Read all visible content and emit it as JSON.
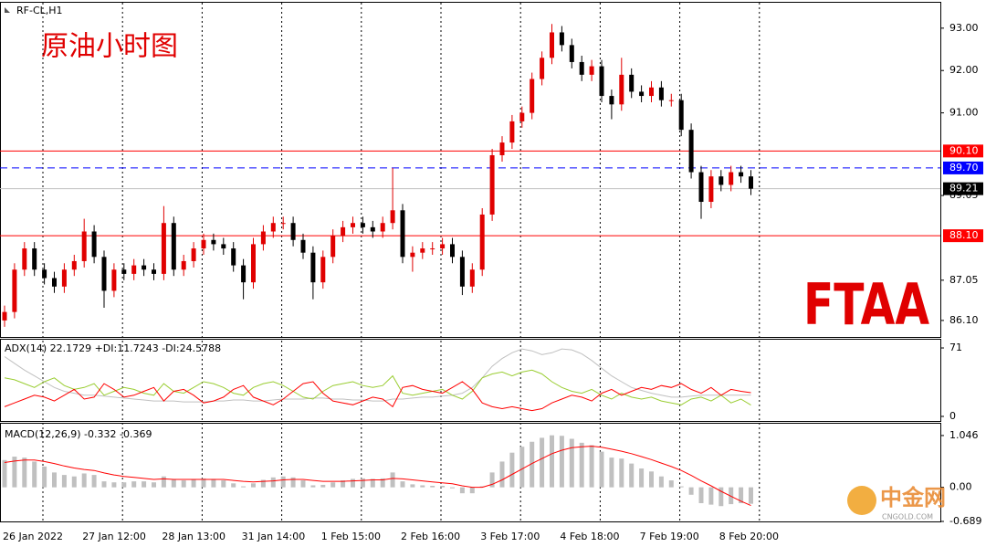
{
  "chart_data": [
    {
      "type": "candlestick",
      "title": "RF-CL,H1",
      "annotation": "原油小时图",
      "categories": [
        "26 Jan 2022",
        null,
        null,
        null,
        null,
        null,
        null,
        null,
        "27 Jan 12:00",
        null,
        null,
        null,
        null,
        null,
        null,
        null,
        "28 Jan 13:00",
        null,
        null,
        null,
        null,
        null,
        null,
        null,
        "31 Jan 14:00",
        null,
        null,
        null,
        null,
        null,
        null,
        null,
        "1 Feb 15:00",
        null,
        null,
        null,
        null,
        null,
        null,
        null,
        "2 Feb 16:00",
        null,
        null,
        null,
        null,
        null,
        null,
        null,
        "3 Feb 17:00",
        null,
        null,
        null,
        null,
        null,
        null,
        null,
        "4 Feb 18:00",
        null,
        null,
        null,
        null,
        null,
        null,
        null,
        "7 Feb 19:00",
        null,
        null,
        null,
        null,
        null,
        null,
        null,
        "8 Feb 20:00",
        null,
        null,
        null
      ],
      "open": [
        86.1,
        86.3,
        87.3,
        87.8,
        87.3,
        87.1,
        86.9,
        87.3,
        87.5,
        88.2,
        87.6,
        86.8,
        87.3,
        87.2,
        87.4,
        87.3,
        87.2,
        88.4,
        87.3,
        87.5,
        87.8,
        88.0,
        87.9,
        87.8,
        87.4,
        87.0,
        87.9,
        88.2,
        88.4,
        88.4,
        88.0,
        87.7,
        87.0,
        87.6,
        88.1,
        88.3,
        88.4,
        88.3,
        88.2,
        88.4,
        88.7,
        87.6,
        87.7,
        87.8,
        87.8,
        87.9,
        87.6,
        86.9,
        87.3,
        88.6,
        90.0,
        90.3,
        90.8,
        91.0,
        91.8,
        92.3,
        92.9,
        92.6,
        92.2,
        91.9,
        92.1,
        91.4,
        91.2,
        91.9,
        91.5,
        91.4,
        91.6,
        91.3,
        91.3,
        90.6,
        89.6,
        88.9,
        89.5,
        89.3,
        89.6,
        89.5
      ],
      "high": [
        86.45,
        87.45,
        87.95,
        87.95,
        87.45,
        87.25,
        87.45,
        87.65,
        88.5,
        88.35,
        87.75,
        87.45,
        87.45,
        87.55,
        87.55,
        87.45,
        88.8,
        88.55,
        87.65,
        87.95,
        88.15,
        88.15,
        88.05,
        87.95,
        87.55,
        88.05,
        88.35,
        88.55,
        88.55,
        88.55,
        88.15,
        87.85,
        87.75,
        88.25,
        88.45,
        88.55,
        88.55,
        88.45,
        88.55,
        89.7,
        88.85,
        87.85,
        87.95,
        87.95,
        88.05,
        88.05,
        87.75,
        87.45,
        88.75,
        90.15,
        90.45,
        90.95,
        91.15,
        91.95,
        92.45,
        93.1,
        93.05,
        92.75,
        92.35,
        92.25,
        92.25,
        91.55,
        92.3,
        92.05,
        91.65,
        91.75,
        91.75,
        91.45,
        91.45,
        90.75,
        89.75,
        89.65,
        89.65,
        89.75,
        89.75,
        89.65
      ],
      "low": [
        85.95,
        86.15,
        87.15,
        87.15,
        86.95,
        86.75,
        86.75,
        87.15,
        87.35,
        87.45,
        86.4,
        86.65,
        87.05,
        87.05,
        87.15,
        87.05,
        87.05,
        87.15,
        87.15,
        87.35,
        87.65,
        87.75,
        87.65,
        87.25,
        86.6,
        86.85,
        87.75,
        88.05,
        88.25,
        87.85,
        87.55,
        86.6,
        86.85,
        87.45,
        87.95,
        88.15,
        88.15,
        88.05,
        88.05,
        88.25,
        87.45,
        87.25,
        87.55,
        87.65,
        87.65,
        87.45,
        86.7,
        86.75,
        87.15,
        88.45,
        89.85,
        90.15,
        90.65,
        90.85,
        91.65,
        92.15,
        92.45,
        92.05,
        91.75,
        91.75,
        91.25,
        90.85,
        91.05,
        91.35,
        91.25,
        91.25,
        91.15,
        91.15,
        90.45,
        89.45,
        88.5,
        88.75,
        89.15,
        89.15,
        89.35,
        89.06
      ],
      "close": [
        86.3,
        87.3,
        87.8,
        87.3,
        87.1,
        86.9,
        87.3,
        87.5,
        88.2,
        87.6,
        86.8,
        87.3,
        87.2,
        87.4,
        87.3,
        87.2,
        88.4,
        87.3,
        87.5,
        87.8,
        88.0,
        87.9,
        87.8,
        87.4,
        87.0,
        87.9,
        88.2,
        88.4,
        88.4,
        88.0,
        87.7,
        87.0,
        87.6,
        88.1,
        88.3,
        88.4,
        88.3,
        88.2,
        88.4,
        88.7,
        87.6,
        87.7,
        87.8,
        87.8,
        87.9,
        87.6,
        86.9,
        87.3,
        88.6,
        90.0,
        90.3,
        90.8,
        91.0,
        91.8,
        92.3,
        92.9,
        92.6,
        92.2,
        91.9,
        92.1,
        91.4,
        91.2,
        91.9,
        91.5,
        91.4,
        91.6,
        91.3,
        91.3,
        90.6,
        89.6,
        88.9,
        89.5,
        89.3,
        89.6,
        89.5,
        89.21
      ],
      "up_color": "#e00000",
      "down_color": "#000000",
      "ylim": [
        85.71,
        93.6
      ],
      "yticks": [
        {
          "value": 93,
          "label": "93.00"
        },
        {
          "value": 92,
          "label": "92.00"
        },
        {
          "value": 91,
          "label": "91.00"
        },
        {
          "value": 89.05,
          "label": "89.05"
        },
        {
          "value": 87.05,
          "label": "87.05"
        },
        {
          "value": 86.1,
          "label": "86.10"
        }
      ],
      "levels": [
        {
          "value": 90.1,
          "label": "90.10",
          "color": "#ff0000",
          "line_color": "#ff0000",
          "dashed": false
        },
        {
          "value": 89.7,
          "label": "89.70",
          "color": "#0000ff",
          "line_color": "#0000ff",
          "dashed": true
        },
        {
          "value": 89.21,
          "label": "89.21",
          "color": "#000000",
          "line_color": "#c0c0c0",
          "dashed": false
        },
        {
          "value": 88.1,
          "label": "88.10",
          "color": "#ff0000",
          "line_color": "#ff0000",
          "dashed": false
        }
      ]
    },
    {
      "type": "line",
      "title": "ADX(14) 22.1729 +DI:11.7243 -DI:24.5788",
      "ylim": [
        -5.7,
        78.6
      ],
      "yticks": [
        71,
        0
      ],
      "series": [
        {
          "color": "#c0c0c0",
          "values": [
            62,
            55,
            48,
            42,
            36,
            30,
            26,
            24,
            22,
            22,
            21,
            20,
            19,
            18,
            17,
            16,
            16,
            16,
            15,
            15,
            15,
            16,
            16,
            17,
            17,
            16,
            16,
            17,
            18,
            18,
            18,
            19,
            19,
            18,
            18,
            17,
            17,
            16,
            16,
            18,
            18,
            19,
            20,
            20,
            21,
            22,
            24,
            30,
            40,
            52,
            60,
            66,
            70,
            68,
            64,
            66,
            70,
            69,
            65,
            58,
            50,
            42,
            36,
            30,
            27,
            24,
            22,
            20,
            20,
            21,
            22,
            22,
            22,
            22,
            22,
            22.1729
          ]
        },
        {
          "color": "#9acd32",
          "values": [
            40,
            38,
            34,
            30,
            36,
            40,
            32,
            28,
            30,
            34,
            22,
            26,
            30,
            28,
            24,
            22,
            34,
            26,
            24,
            30,
            36,
            34,
            30,
            24,
            22,
            30,
            34,
            36,
            32,
            26,
            20,
            18,
            26,
            32,
            34,
            36,
            32,
            30,
            32,
            42,
            24,
            22,
            24,
            26,
            28,
            22,
            18,
            26,
            40,
            44,
            46,
            42,
            46,
            48,
            44,
            36,
            30,
            26,
            24,
            28,
            22,
            18,
            24,
            20,
            18,
            20,
            16,
            14,
            12,
            18,
            20,
            16,
            22,
            14,
            18,
            11.7243
          ]
        },
        {
          "color": "#ff0000",
          "values": [
            10,
            14,
            18,
            22,
            20,
            16,
            22,
            28,
            18,
            20,
            34,
            28,
            20,
            22,
            26,
            30,
            16,
            26,
            28,
            22,
            14,
            16,
            20,
            28,
            32,
            20,
            16,
            12,
            18,
            26,
            34,
            36,
            24,
            16,
            14,
            12,
            16,
            20,
            18,
            10,
            30,
            32,
            28,
            26,
            24,
            30,
            36,
            28,
            14,
            10,
            8,
            10,
            8,
            6,
            8,
            14,
            18,
            22,
            20,
            16,
            24,
            28,
            22,
            26,
            30,
            28,
            32,
            30,
            34,
            28,
            24,
            30,
            22,
            28,
            26,
            24.5788
          ]
        }
      ]
    },
    {
      "type": "macd",
      "title": "MACD(12,26,9) -0.332 -0.369",
      "ylim": [
        -0.689,
        1.266
      ],
      "yticks": [
        1.046,
        {
          "value": 0,
          "label": "0.00"
        },
        -0.689
      ],
      "histogram": {
        "color": "#c0c0c0",
        "values": [
          0.55,
          0.62,
          0.6,
          0.52,
          0.42,
          0.3,
          0.25,
          0.22,
          0.28,
          0.25,
          0.12,
          0.1,
          0.1,
          0.12,
          0.12,
          0.1,
          0.22,
          0.15,
          0.14,
          0.16,
          0.18,
          0.17,
          0.14,
          0.08,
          0.02,
          0.08,
          0.15,
          0.2,
          0.22,
          0.2,
          0.14,
          0.04,
          0.05,
          0.1,
          0.14,
          0.17,
          0.18,
          0.17,
          0.18,
          0.3,
          0.12,
          0.06,
          0.04,
          0.03,
          0.03,
          -0.02,
          -0.12,
          -0.12,
          0.02,
          0.3,
          0.52,
          0.7,
          0.82,
          0.92,
          1.0,
          1.05,
          1.04,
          0.98,
          0.9,
          0.85,
          0.72,
          0.6,
          0.58,
          0.48,
          0.38,
          0.32,
          0.22,
          0.14,
          0.02,
          -0.15,
          -0.32,
          -0.35,
          -0.38,
          -0.34,
          -0.32,
          -0.332
        ]
      },
      "signal": {
        "color": "#ff0000",
        "values": [
          0.5,
          0.53,
          0.55,
          0.55,
          0.52,
          0.48,
          0.43,
          0.39,
          0.36,
          0.34,
          0.29,
          0.25,
          0.22,
          0.2,
          0.18,
          0.16,
          0.17,
          0.16,
          0.16,
          0.16,
          0.16,
          0.16,
          0.16,
          0.14,
          0.12,
          0.11,
          0.12,
          0.13,
          0.15,
          0.16,
          0.16,
          0.14,
          0.12,
          0.12,
          0.12,
          0.13,
          0.14,
          0.15,
          0.15,
          0.18,
          0.17,
          0.15,
          0.13,
          0.11,
          0.09,
          0.07,
          0.03,
          0.0,
          0.0,
          0.06,
          0.15,
          0.26,
          0.37,
          0.48,
          0.58,
          0.68,
          0.75,
          0.8,
          0.82,
          0.83,
          0.81,
          0.77,
          0.73,
          0.68,
          0.62,
          0.56,
          0.49,
          0.42,
          0.34,
          0.24,
          0.13,
          0.03,
          -0.08,
          -0.18,
          -0.28,
          -0.369
        ]
      }
    }
  ],
  "logo": "FTAA",
  "watermark": {
    "brand": "中金网",
    "site": "CNGOLD.COM"
  }
}
